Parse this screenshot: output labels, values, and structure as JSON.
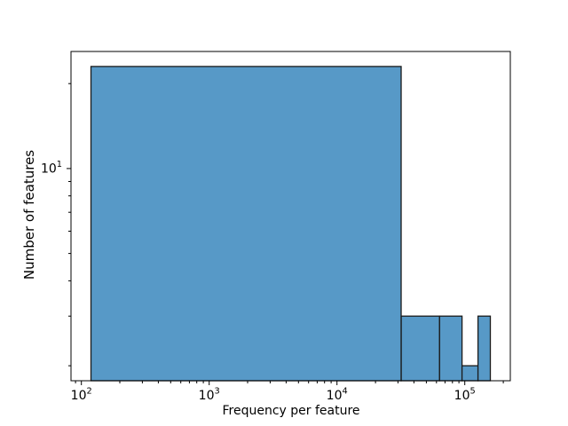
{
  "chart_data": {
    "type": "bar",
    "subtype": "histogram",
    "title": "",
    "xlabel": "Frequency per feature",
    "ylabel": "Number of features",
    "xscale": "log",
    "yscale": "log",
    "bin_edges": [
      119,
      31795,
      63471,
      95147,
      126824,
      158500
    ],
    "counts": [
      23,
      3,
      3,
      2,
      3
    ],
    "xlim": [
      83,
      227000
    ],
    "ylim": [
      1.77,
      26
    ],
    "grid": false,
    "legend": null,
    "x_ticks": [
      {
        "value": 100,
        "base": "10",
        "exp": "2"
      },
      {
        "value": 1000,
        "base": "10",
        "exp": "3"
      },
      {
        "value": 10000,
        "base": "10",
        "exp": "4"
      },
      {
        "value": 100000,
        "base": "10",
        "exp": "5"
      }
    ],
    "y_ticks": [
      {
        "value": 10,
        "base": "10",
        "exp": "1"
      }
    ],
    "colors": {
      "bar_fill": "#5799c7",
      "bar_edge": "#1a1a1a",
      "axis": "#000000",
      "background": "#ffffff"
    }
  }
}
